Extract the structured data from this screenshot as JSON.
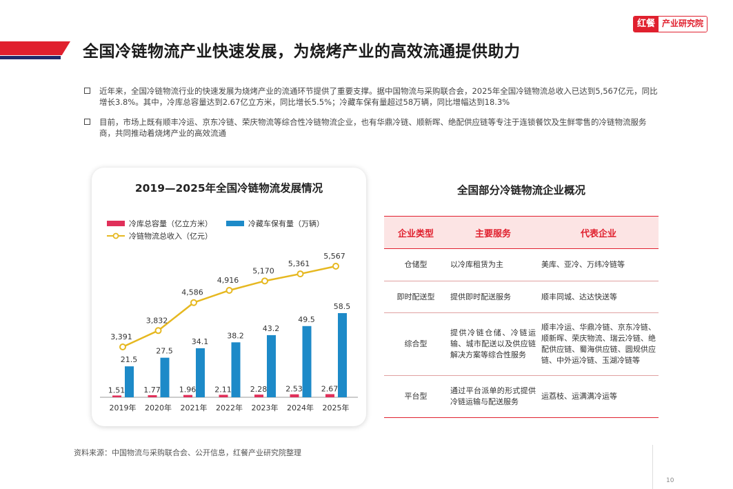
{
  "brand": {
    "mark": "红餐",
    "name": "产业研究院"
  },
  "page_title": "全国冷链物流产业快速发展，为烧烤产业的高效流通提供助力",
  "bullets": [
    "近年来，全国冷链物流行业的快速发展为烧烤产业的流通环节提供了重要支撑。据中国物流与采购联合会，2025年全国冷链物流总收入已达到5,567亿元，同比增长3.8%。其中，冷库总容量达到2.67亿立方米，同比增长5.5%；冷藏车保有量超过58万辆，同比增幅达到18.3%",
    "目前，市场上既有顺丰冷运、京东冷链、荣庆物流等综合性冷链物流企业，也有华鼎冷链、顺新晖、绝配供应链等专注于连锁餐饮及生鲜零售的冷链物流服务商，共同推动着烧烤产业的高效流通"
  ],
  "chart_data": {
    "type": "bar",
    "title": "2019—2025年全国冷链物流发展情况",
    "categories": [
      "2019年",
      "2020年",
      "2021年",
      "2022年",
      "2023年",
      "2024年",
      "2025年"
    ],
    "series": [
      {
        "name": "冷库总容量（亿立方米）",
        "kind": "bar",
        "color": "#e0305a",
        "values": [
          1.51,
          1.77,
          1.96,
          2.11,
          2.28,
          2.53,
          2.67
        ],
        "labels": [
          "1.51",
          "1.77",
          "1.96",
          "2.11",
          "2.28",
          "2.53",
          "2.67"
        ]
      },
      {
        "name": "冷藏车保有量（万辆）",
        "kind": "bar",
        "color": "#1d8ac8",
        "values": [
          21.5,
          27.5,
          34.1,
          38.2,
          43.2,
          49.5,
          58.5
        ],
        "labels": [
          "21.5",
          "27.5",
          "34.1",
          "38.2",
          "43.2",
          "49.5",
          "58.5"
        ]
      },
      {
        "name": "冷链物流总收入（亿元）",
        "kind": "line",
        "color": "#e6b820",
        "values": [
          3391,
          3832,
          4586,
          4916,
          5170,
          5361,
          5567
        ],
        "labels": [
          "3,391",
          "3,832",
          "4,586",
          "4,916",
          "5,170",
          "5,361",
          "5,567"
        ]
      }
    ],
    "legend_position": "top-left"
  },
  "table": {
    "title": "全国部分冷链物流企业概况",
    "headers": [
      "企业类型",
      "主要服务",
      "代表企业"
    ],
    "rows": [
      {
        "type": "仓储型",
        "service": "以冷库租赁为主",
        "enterprises": "美库、亚冷、万纬冷链等"
      },
      {
        "type": "即时配送型",
        "service": "提供即时配送服务",
        "enterprises": "顺丰同城、达达快送等"
      },
      {
        "type": "综合型",
        "service": "提供冷链仓储、冷链运输、城市配送以及供应链解决方案等综合性服务",
        "enterprises": "顺丰冷运、华鼎冷链、京东冷链、顺新晖、荣庆物流、瑞云冷链、绝配供应链、蜀海供应链、圆规供应链、中外运冷链、玉湖冷链等"
      },
      {
        "type": "平台型",
        "service": "通过平台派单的形式提供冷链运输与配送服务",
        "enterprises": "运荔枝、运满满冷运等"
      }
    ]
  },
  "source": "资料来源：中国物流与采购联合会、公开信息，红餐产业研究院整理",
  "page_number": "10"
}
